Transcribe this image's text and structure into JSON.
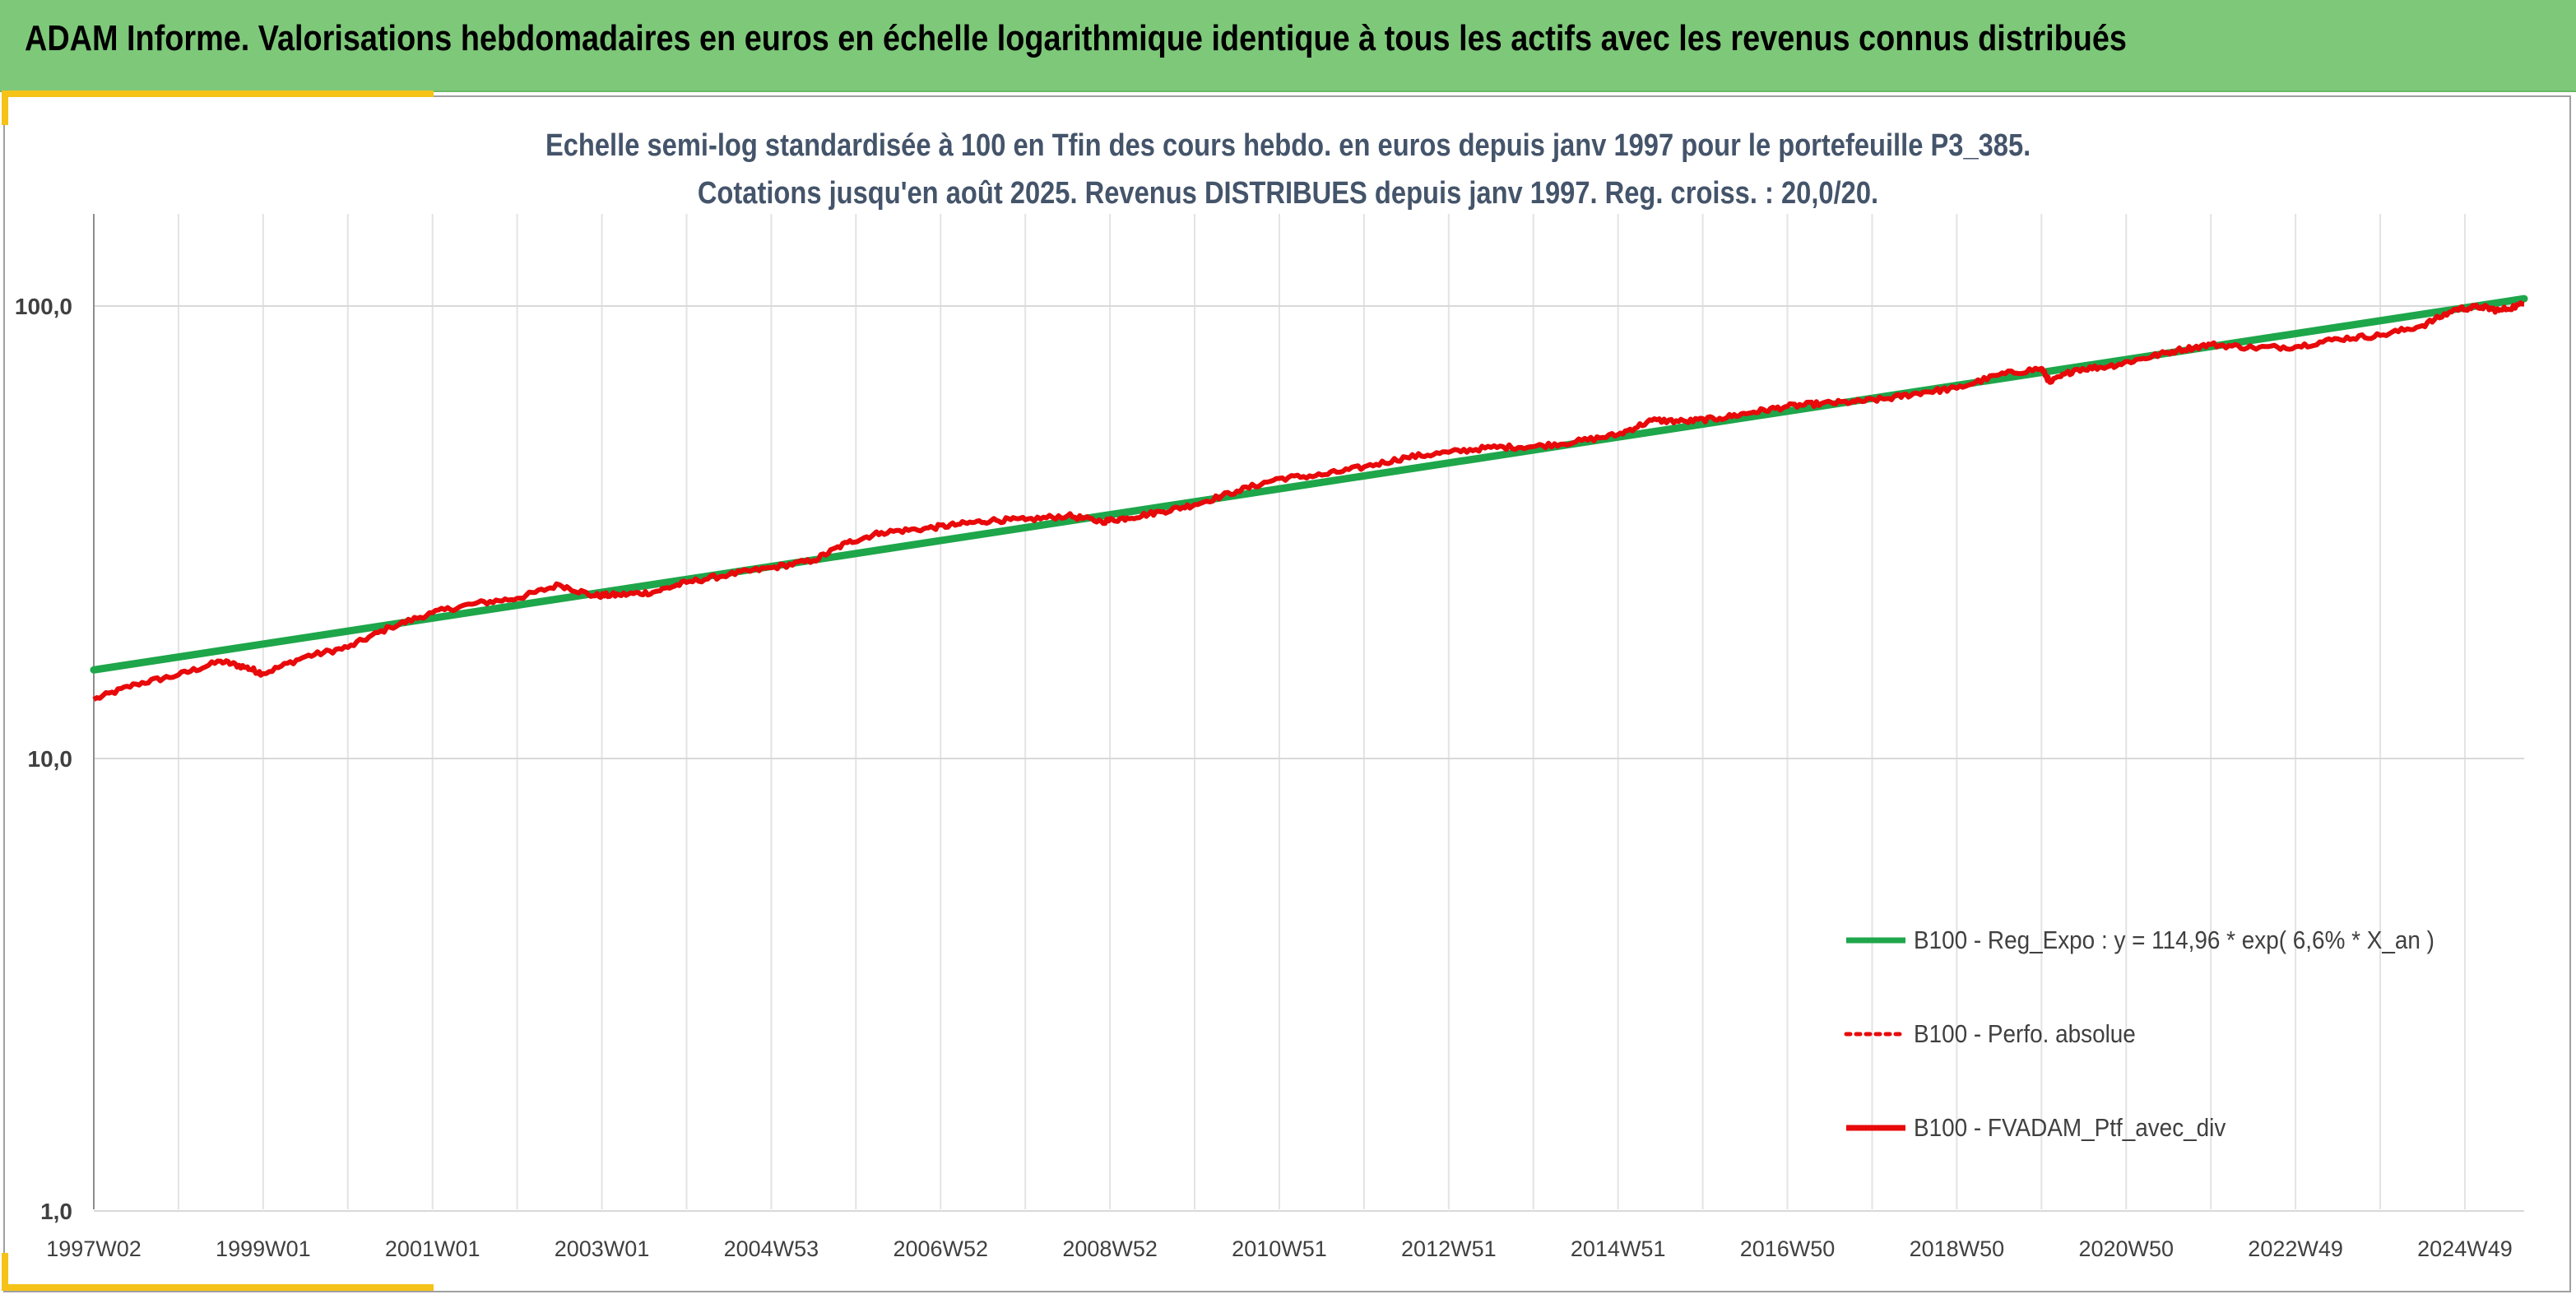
{
  "banner": {
    "title": "ADAM Informe. Valorisations hebdomadaires en euros en échelle logarithmique identique à tous les actifs avec les revenus connus distribués"
  },
  "colors": {
    "banner": "#7ec87a",
    "accent_corner": "#f5c218",
    "regression": "#1ea64a",
    "portfolio": "#e8090a",
    "title_text": "#44546a"
  },
  "chart_data": {
    "type": "line",
    "title": "Echelle semi-log standardisée à 100 en Tfin des cours hebdo. en euros depuis janv 1997 pour le portefeuille P3_385.",
    "subtitle": "Cotations jusqu'en août 2025. Revenus DISTRIBUES depuis janv 1997. Reg. croiss. : 20,0/20.",
    "y_scale": "log",
    "ylim": [
      1,
      200
    ],
    "yticks": [
      {
        "value": 1,
        "label": "1,0"
      },
      {
        "value": 10,
        "label": "10,0"
      },
      {
        "value": 100,
        "label": "100,0"
      }
    ],
    "x_range": [
      1997.0,
      2025.7
    ],
    "xticks": [
      {
        "value": 1997.0,
        "label": "1997W02"
      },
      {
        "value": 1999.0,
        "label": "1999W01"
      },
      {
        "value": 2001.0,
        "label": "2001W01"
      },
      {
        "value": 2003.0,
        "label": "2003W01"
      },
      {
        "value": 2005.0,
        "label": "2004W53"
      },
      {
        "value": 2007.0,
        "label": "2006W52"
      },
      {
        "value": 2009.0,
        "label": "2008W52"
      },
      {
        "value": 2011.0,
        "label": "2010W51"
      },
      {
        "value": 2013.0,
        "label": "2012W51"
      },
      {
        "value": 2015.0,
        "label": "2014W51"
      },
      {
        "value": 2017.0,
        "label": "2016W50"
      },
      {
        "value": 2019.0,
        "label": "2018W50"
      },
      {
        "value": 2021.0,
        "label": "2020W50"
      },
      {
        "value": 2023.0,
        "label": "2022W49"
      },
      {
        "value": 2025.0,
        "label": "2024W49"
      }
    ],
    "grid": "vertical-and-horizontal",
    "legend_position": "bottom-right",
    "series": [
      {
        "name": "B100 - Reg_Expo : y = 114,96 * exp( 6,6% *  X_an )",
        "color": "#1ea64a",
        "style": "solid",
        "points": [
          [
            1997.0,
            15.7
          ],
          [
            2025.7,
            103.8
          ]
        ]
      },
      {
        "name": "B100 - Perfo. absolue",
        "color": "#e8090a",
        "style": "dotted",
        "points": []
      },
      {
        "name": "B100 - FVADAM_Ptf_avec_div",
        "color": "#e8090a",
        "style": "solid",
        "points": [
          [
            1997.0,
            13.5
          ],
          [
            1997.5,
            14.6
          ],
          [
            1998.0,
            15.3
          ],
          [
            1998.5,
            16.4
          ],
          [
            1998.8,
            15.9
          ],
          [
            1999.0,
            15.4
          ],
          [
            1999.5,
            16.8
          ],
          [
            2000.0,
            17.6
          ],
          [
            2000.5,
            19.5
          ],
          [
            2001.0,
            21.0
          ],
          [
            2001.5,
            22.0
          ],
          [
            2002.0,
            22.6
          ],
          [
            2002.5,
            24.2
          ],
          [
            2002.9,
            22.9
          ],
          [
            2003.2,
            23.0
          ],
          [
            2003.6,
            23.3
          ],
          [
            2004.0,
            24.5
          ],
          [
            2004.5,
            25.5
          ],
          [
            2005.0,
            26.4
          ],
          [
            2005.5,
            27.4
          ],
          [
            2005.9,
            30.0
          ],
          [
            2006.3,
            31.6
          ],
          [
            2006.8,
            32.2
          ],
          [
            2007.2,
            32.9
          ],
          [
            2007.6,
            33.6
          ],
          [
            2008.0,
            33.7
          ],
          [
            2008.5,
            34.4
          ],
          [
            2008.9,
            33.4
          ],
          [
            2009.2,
            34.0
          ],
          [
            2009.6,
            35.1
          ],
          [
            2010.0,
            36.4
          ],
          [
            2010.5,
            39.0
          ],
          [
            2011.0,
            41.6
          ],
          [
            2011.5,
            42.3
          ],
          [
            2012.0,
            44.1
          ],
          [
            2012.5,
            46.3
          ],
          [
            2013.0,
            47.5
          ],
          [
            2013.5,
            48.7
          ],
          [
            2014.0,
            48.9
          ],
          [
            2014.5,
            50.1
          ],
          [
            2015.0,
            52.0
          ],
          [
            2015.4,
            55.9
          ],
          [
            2015.8,
            55.6
          ],
          [
            2016.2,
            56.5
          ],
          [
            2016.6,
            58.3
          ],
          [
            2017.0,
            60.0
          ],
          [
            2017.4,
            60.9
          ],
          [
            2017.8,
            61.4
          ],
          [
            2018.2,
            62.5
          ],
          [
            2018.6,
            64.5
          ],
          [
            2019.0,
            65.8
          ],
          [
            2019.5,
            70.5
          ],
          [
            2020.0,
            72.8
          ],
          [
            2020.1,
            67.8
          ],
          [
            2020.4,
            72.4
          ],
          [
            2020.8,
            73.6
          ],
          [
            2021.2,
            76.6
          ],
          [
            2021.6,
            79.8
          ],
          [
            2022.0,
            82.2
          ],
          [
            2022.5,
            80.9
          ],
          [
            2023.0,
            81.3
          ],
          [
            2023.5,
            84.6
          ],
          [
            2024.0,
            86.1
          ],
          [
            2024.5,
            90.5
          ],
          [
            2024.9,
            98.5
          ],
          [
            2025.2,
            99.6
          ],
          [
            2025.4,
            97.7
          ],
          [
            2025.7,
            101.0
          ]
        ]
      }
    ]
  }
}
